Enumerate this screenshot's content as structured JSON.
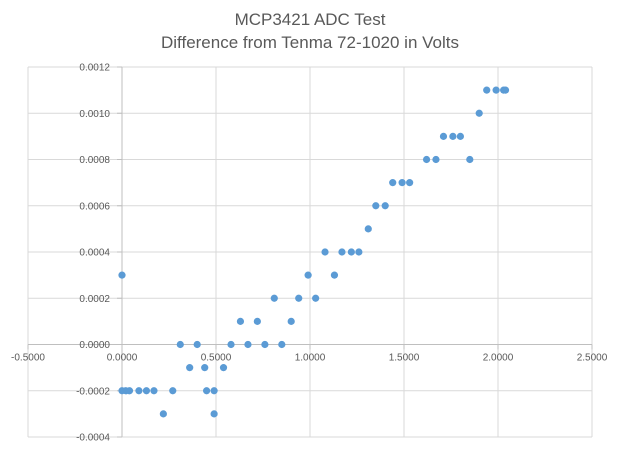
{
  "chart_data": {
    "type": "scatter",
    "title": "MCP3421 ADC Test",
    "subtitle": "Difference from Tenma 72-1020 in Volts",
    "xlabel": "",
    "ylabel": "",
    "xlim": [
      -0.5,
      2.5
    ],
    "ylim": [
      -0.0004,
      0.0012
    ],
    "x_ticks": [
      -0.5,
      0.0,
      0.5,
      1.0,
      1.5,
      2.0,
      2.5
    ],
    "x_tick_labels": [
      "-0.5000",
      "0.0000",
      "0.5000",
      "1.0000",
      "1.5000",
      "2.0000",
      "2.5000"
    ],
    "y_ticks": [
      -0.0004,
      -0.0002,
      0.0,
      0.0002,
      0.0004,
      0.0006,
      0.0008,
      0.001,
      0.0012
    ],
    "y_tick_labels": [
      "-0.0004",
      "-0.0002",
      "0.0000",
      "0.0002",
      "0.0004",
      "0.0006",
      "0.0008",
      "0.0010",
      "0.0012"
    ],
    "grid": true,
    "legend": "none",
    "marker_color": "#5b9bd5",
    "series": [
      {
        "name": "Difference",
        "points": [
          [
            0.0,
            0.0003
          ],
          [
            0.0,
            -0.0002
          ],
          [
            0.02,
            -0.0002
          ],
          [
            0.04,
            -0.0002
          ],
          [
            0.09,
            -0.0002
          ],
          [
            0.13,
            -0.0002
          ],
          [
            0.17,
            -0.0002
          ],
          [
            0.22,
            -0.0003
          ],
          [
            0.27,
            -0.0002
          ],
          [
            0.31,
            0.0
          ],
          [
            0.36,
            -0.0001
          ],
          [
            0.4,
            0.0
          ],
          [
            0.44,
            -0.0001
          ],
          [
            0.45,
            -0.0002
          ],
          [
            0.49,
            -0.0002
          ],
          [
            0.49,
            -0.0003
          ],
          [
            0.54,
            -0.0001
          ],
          [
            0.58,
            0.0
          ],
          [
            0.63,
            0.0001
          ],
          [
            0.67,
            0.0
          ],
          [
            0.72,
            0.0001
          ],
          [
            0.76,
            0.0
          ],
          [
            0.81,
            0.0002
          ],
          [
            0.85,
            0.0
          ],
          [
            0.9,
            0.0001
          ],
          [
            0.94,
            0.0002
          ],
          [
            0.99,
            0.0003
          ],
          [
            1.03,
            0.0002
          ],
          [
            1.08,
            0.0004
          ],
          [
            1.13,
            0.0003
          ],
          [
            1.17,
            0.0004
          ],
          [
            1.22,
            0.0004
          ],
          [
            1.26,
            0.0004
          ],
          [
            1.31,
            0.0005
          ],
          [
            1.35,
            0.0006
          ],
          [
            1.4,
            0.0006
          ],
          [
            1.44,
            0.0007
          ],
          [
            1.49,
            0.0007
          ],
          [
            1.53,
            0.0007
          ],
          [
            1.62,
            0.0008
          ],
          [
            1.67,
            0.0008
          ],
          [
            1.71,
            0.0009
          ],
          [
            1.76,
            0.0009
          ],
          [
            1.8,
            0.0009
          ],
          [
            1.85,
            0.0008
          ],
          [
            1.9,
            0.001
          ],
          [
            1.94,
            0.0011
          ],
          [
            1.99,
            0.0011
          ],
          [
            2.03,
            0.0011
          ],
          [
            2.04,
            0.0011
          ]
        ]
      }
    ]
  }
}
